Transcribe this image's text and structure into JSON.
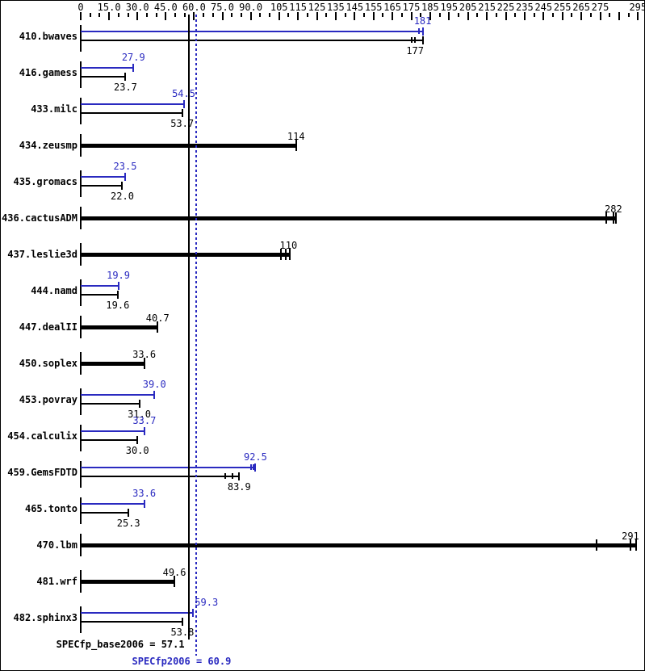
{
  "colors": {
    "peak_blue": "#2a2ac0",
    "base_black": "#000000",
    "background": "#ffffff"
  },
  "chart_data": {
    "type": "bar",
    "orientation": "horizontal",
    "title": "",
    "legend": "none",
    "axis": {
      "min": 0,
      "max": 295,
      "minor_tick_step": 5,
      "labeled_ticks": [
        {
          "v": 0,
          "label": "0"
        },
        {
          "v": 15,
          "label": "15.0"
        },
        {
          "v": 30,
          "label": "30.0"
        },
        {
          "v": 45,
          "label": "45.0"
        },
        {
          "v": 60,
          "label": "60.0"
        },
        {
          "v": 75,
          "label": "75.0"
        },
        {
          "v": 90,
          "label": "90.0"
        },
        {
          "v": 105,
          "label": "105"
        },
        {
          "v": 115,
          "label": "115"
        },
        {
          "v": 125,
          "label": "125"
        },
        {
          "v": 135,
          "label": "135"
        },
        {
          "v": 145,
          "label": "145"
        },
        {
          "v": 155,
          "label": "155"
        },
        {
          "v": 165,
          "label": "165"
        },
        {
          "v": 175,
          "label": "175"
        },
        {
          "v": 185,
          "label": "185"
        },
        {
          "v": 195,
          "label": "195"
        },
        {
          "v": 205,
          "label": "205"
        },
        {
          "v": 215,
          "label": "215"
        },
        {
          "v": 225,
          "label": "225"
        },
        {
          "v": 235,
          "label": "235"
        },
        {
          "v": 245,
          "label": "245"
        },
        {
          "v": 255,
          "label": "255"
        },
        {
          "v": 265,
          "label": "265"
        },
        {
          "v": 275,
          "label": "275"
        },
        {
          "v": 295,
          "label": "295"
        }
      ],
      "unlabeled_major_ticks": [
        285
      ]
    },
    "benchmarks": [
      {
        "name": "410.bwaves",
        "peak": {
          "value": 181,
          "label": "181",
          "marks": [
            179,
            181
          ]
        },
        "base": {
          "value": 177,
          "label": "177",
          "marks": [
            175,
            177,
            181
          ]
        }
      },
      {
        "name": "416.gamess",
        "peak": {
          "value": 27.9,
          "label": "27.9",
          "marks": [
            27.9
          ]
        },
        "base": {
          "value": 23.7,
          "label": "23.7",
          "marks": [
            23.7
          ]
        }
      },
      {
        "name": "433.milc",
        "peak": {
          "value": 54.5,
          "label": "54.5",
          "marks": [
            54.5
          ]
        },
        "base": {
          "value": 53.7,
          "label": "53.7",
          "marks": [
            53.7
          ]
        }
      },
      {
        "name": "434.zeusmp",
        "peak": null,
        "base": {
          "value": 114,
          "label": "114",
          "marks": [
            114
          ]
        }
      },
      {
        "name": "435.gromacs",
        "peak": {
          "value": 23.5,
          "label": "23.5",
          "marks": [
            23.5
          ]
        },
        "base": {
          "value": 22.0,
          "label": "22.0",
          "marks": [
            22.0
          ]
        }
      },
      {
        "name": "436.cactusADM",
        "peak": null,
        "base": {
          "value": 282,
          "label": "282",
          "marks": [
            278,
            282,
            283.5
          ]
        }
      },
      {
        "name": "437.leslie3d",
        "peak": null,
        "base": {
          "value": 110,
          "label": "110",
          "marks": [
            106,
            108.5,
            110.8
          ]
        }
      },
      {
        "name": "444.namd",
        "peak": {
          "value": 19.9,
          "label": "19.9",
          "marks": [
            19.9
          ]
        },
        "base": {
          "value": 19.6,
          "label": "19.6",
          "marks": [
            19.6
          ]
        }
      },
      {
        "name": "447.dealII",
        "peak": null,
        "base": {
          "value": 40.7,
          "label": "40.7",
          "marks": [
            40.7
          ]
        }
      },
      {
        "name": "450.soplex",
        "peak": null,
        "base": {
          "value": 33.6,
          "label": "33.6",
          "marks": [
            33.6
          ]
        }
      },
      {
        "name": "453.povray",
        "peak": {
          "value": 39.0,
          "label": "39.0",
          "marks": [
            39.0
          ]
        },
        "base": {
          "value": 31.0,
          "label": "31.0",
          "marks": [
            31.0
          ]
        }
      },
      {
        "name": "454.calculix",
        "peak": {
          "value": 33.7,
          "label": "33.7",
          "marks": [
            33.7
          ]
        },
        "base": {
          "value": 30.0,
          "label": "30.0",
          "marks": [
            30.0
          ]
        }
      },
      {
        "name": "459.GemsFDTD",
        "peak": {
          "value": 92.5,
          "label": "92.5",
          "marks": [
            90.3,
            91.5,
            92.5
          ]
        },
        "base": {
          "value": 83.9,
          "label": "83.9",
          "marks": [
            76.5,
            80.3,
            83.9
          ]
        }
      },
      {
        "name": "465.tonto",
        "peak": {
          "value": 33.6,
          "label": "33.6",
          "marks": [
            33.6
          ]
        },
        "base": {
          "value": 25.3,
          "label": "25.3",
          "marks": [
            25.3
          ]
        }
      },
      {
        "name": "470.lbm",
        "peak": null,
        "base": {
          "value": 291,
          "label": "291",
          "marks": [
            273,
            291,
            294
          ]
        }
      },
      {
        "name": "481.wrf",
        "peak": null,
        "base": {
          "value": 49.6,
          "label": "49.6",
          "marks": [
            49.6
          ]
        }
      },
      {
        "name": "482.sphinx3",
        "peak": {
          "value": 59.3,
          "label": "59.3",
          "marks": [
            59.3
          ],
          "label_dx": 17
        },
        "base": {
          "value": 53.8,
          "label": "53.8",
          "marks": [
            53.8
          ]
        }
      }
    ],
    "base_summary": {
      "label": "SPECfp_base2006 = 57.1",
      "value": 57.1
    },
    "peak_summary": {
      "label": "SPECfp2006 = 60.9",
      "value": 60.9
    }
  }
}
